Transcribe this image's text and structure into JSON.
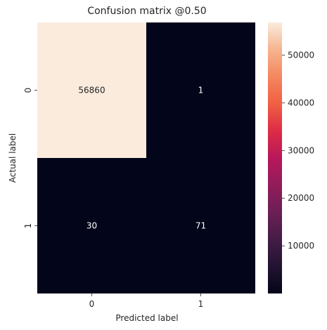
{
  "chart_data": {
    "type": "heatmap",
    "title": "Confusion matrix @0.50",
    "xlabel": "Predicted label",
    "ylabel": "Actual label",
    "x_categories": [
      "0",
      "1"
    ],
    "y_categories": [
      "0",
      "1"
    ],
    "values": [
      [
        56860,
        1
      ],
      [
        30,
        71
      ]
    ],
    "colormap": "rocket",
    "colorbar": {
      "ticks": [
        10000,
        20000,
        30000,
        40000,
        50000
      ],
      "range": [
        1,
        56860
      ]
    },
    "annotation_colors": {
      "light_cell": "#262626",
      "dark_cell": "#ffffff"
    }
  }
}
